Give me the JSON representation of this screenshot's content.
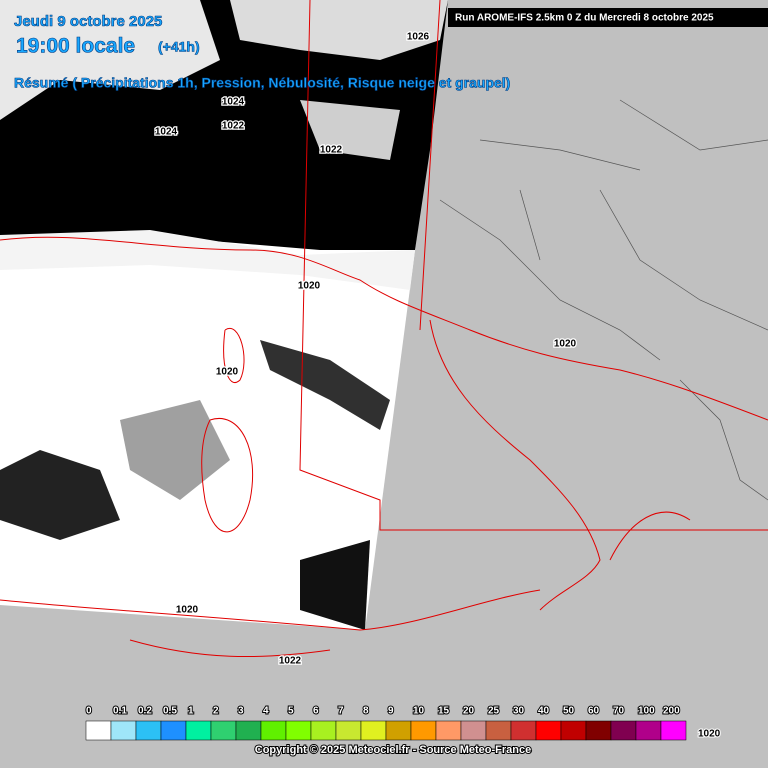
{
  "header": {
    "date": "Jeudi 9 octobre 2025",
    "time": "19:00 locale",
    "lead": "(+41h)",
    "summary": "Résumé ( Précipitations 1h, Pression, Nébulosité, Risque neige et graupel)",
    "run": "Run AROME-IFS 2.5km 0 Z du Mercredi 8 octobre 2025"
  },
  "isobar_labels": [
    "1026",
    "1024",
    "1024",
    "1022",
    "1022",
    "1020",
    "1020",
    "1020",
    "1020",
    "1022"
  ],
  "legend": {
    "labels": [
      0,
      0.1,
      0.2,
      0.5,
      1,
      2,
      3,
      4,
      5,
      6,
      7,
      8,
      9,
      10,
      15,
      20,
      25,
      30,
      40,
      50,
      60,
      70,
      100,
      200
    ],
    "colors": [
      "#ffffff",
      "#9fe6f9",
      "#2cc0f5",
      "#1e90ff",
      "#00f0a0",
      "#2fd070",
      "#20b050",
      "#60f000",
      "#80ff00",
      "#a8f020",
      "#c8e830",
      "#e0f020",
      "#d0a000",
      "#ff9900",
      "#ff9966",
      "#d09090",
      "#c86040",
      "#d03030",
      "#ff0000",
      "#c00000",
      "#800000",
      "#800050",
      "#b0008a",
      "#ff00ff"
    ],
    "end_label": "1020"
  },
  "copyright": "Copyright © 2025 Meteociel.fr - Source Meteo-France"
}
